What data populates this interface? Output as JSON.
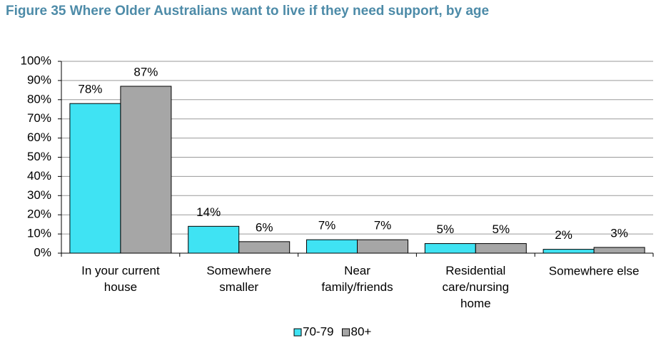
{
  "chart_data": {
    "type": "bar",
    "title": "Figure 35  Where Older Australians want to live if they need support, by age",
    "categories": [
      "In your current\nhouse",
      "Somewhere\nsmaller",
      "Near\nfamily/friends",
      "Residential\ncare/nursing\nhome",
      "Somewhere else"
    ],
    "series": [
      {
        "name": "70-79",
        "color": "#3fe3f3",
        "values": [
          78,
          14,
          7,
          5,
          2
        ],
        "value_labels": [
          "78%",
          "14%",
          "7%",
          "5%",
          "2%"
        ]
      },
      {
        "name": "80+",
        "color": "#a6a6a6",
        "values": [
          87,
          6,
          7,
          5,
          3
        ],
        "value_labels": [
          "87%",
          "6%",
          "7%",
          "5%",
          "3%"
        ]
      }
    ],
    "ylim": [
      0,
      100
    ],
    "yticks": [
      {
        "value": 0,
        "label": "0%"
      },
      {
        "value": 10,
        "label": "10%"
      },
      {
        "value": 20,
        "label": "20%"
      },
      {
        "value": 30,
        "label": "30%"
      },
      {
        "value": 40,
        "label": "40%"
      },
      {
        "value": 50,
        "label": "50%"
      },
      {
        "value": 60,
        "label": "60%"
      },
      {
        "value": 70,
        "label": "70%"
      },
      {
        "value": 80,
        "label": "80%"
      },
      {
        "value": 90,
        "label": "90%"
      },
      {
        "value": 100,
        "label": "100%"
      }
    ],
    "grid": true,
    "legend": "bottom"
  }
}
